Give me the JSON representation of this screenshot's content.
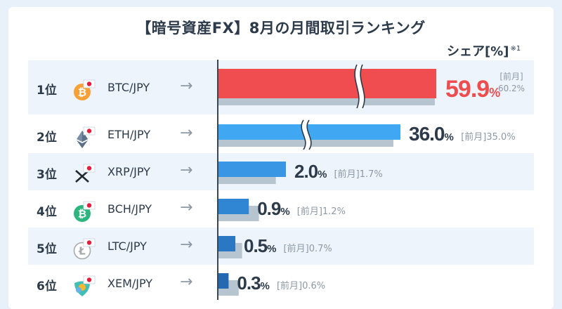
{
  "title": "【暗号資産FX】8月の月間取引ランキング",
  "unit_label": "シェア[%]",
  "unit_note": "※1",
  "prev_tag": "[前月]",
  "arrow_glyph": "→",
  "rows": [
    {
      "rank": "1位",
      "pair": "BTC/JPY",
      "coin_icon": "bitcoin-icon",
      "coin_color": "#f7a035",
      "value_label": "59.9",
      "pct": "%",
      "prev_label": "60.2%"
    },
    {
      "rank": "2位",
      "pair": "ETH/JPY",
      "coin_icon": "ethereum-icon",
      "coin_color": "#7a8ea8",
      "value_label": "36.0",
      "pct": "%",
      "prev_label": "35.0%"
    },
    {
      "rank": "3位",
      "pair": "XRP/JPY",
      "coin_icon": "xrp-icon",
      "coin_color": "#23292f",
      "value_label": "2.0",
      "pct": "%",
      "prev_label": "1.7%"
    },
    {
      "rank": "4位",
      "pair": "BCH/JPY",
      "coin_icon": "bitcoin-cash-icon",
      "coin_color": "#2cb67d",
      "value_label": "0.9",
      "pct": "%",
      "prev_label": "1.2%"
    },
    {
      "rank": "5位",
      "pair": "LTC/JPY",
      "coin_icon": "litecoin-icon",
      "coin_color": "#a6a9aa",
      "value_label": "0.5",
      "pct": "%",
      "prev_label": "0.7%"
    },
    {
      "rank": "6位",
      "pair": "XEM/JPY",
      "coin_icon": "nem-icon",
      "coin_color": "#41bfb5",
      "value_label": "0.3",
      "pct": "%",
      "prev_label": "0.6%"
    }
  ],
  "colors": {
    "btc_bar": "#ef4d4f",
    "blue_bars": [
      "#40a8f2",
      "#3896e4",
      "#3186d4",
      "#2a78c4",
      "#2468b2"
    ],
    "prev_bar": "#b6c5d0",
    "value_red": "#ee4d4f",
    "value_dark": "#2c3a4a",
    "prev_text": "#8d99a6"
  },
  "chart_data": {
    "type": "bar",
    "orientation": "horizontal",
    "categories": [
      "BTC/JPY",
      "ETH/JPY",
      "XRP/JPY",
      "BCH/JPY",
      "LTC/JPY",
      "XEM/JPY"
    ],
    "series": [
      {
        "name": "8月",
        "values": [
          59.9,
          36.0,
          2.0,
          0.9,
          0.5,
          0.3
        ]
      },
      {
        "name": "前月",
        "values": [
          60.2,
          35.0,
          1.7,
          1.2,
          0.7,
          0.6
        ]
      }
    ],
    "axis_breaks": [
      "BTC/JPY",
      "ETH/JPY"
    ],
    "ylabel": "シェア[%]"
  }
}
